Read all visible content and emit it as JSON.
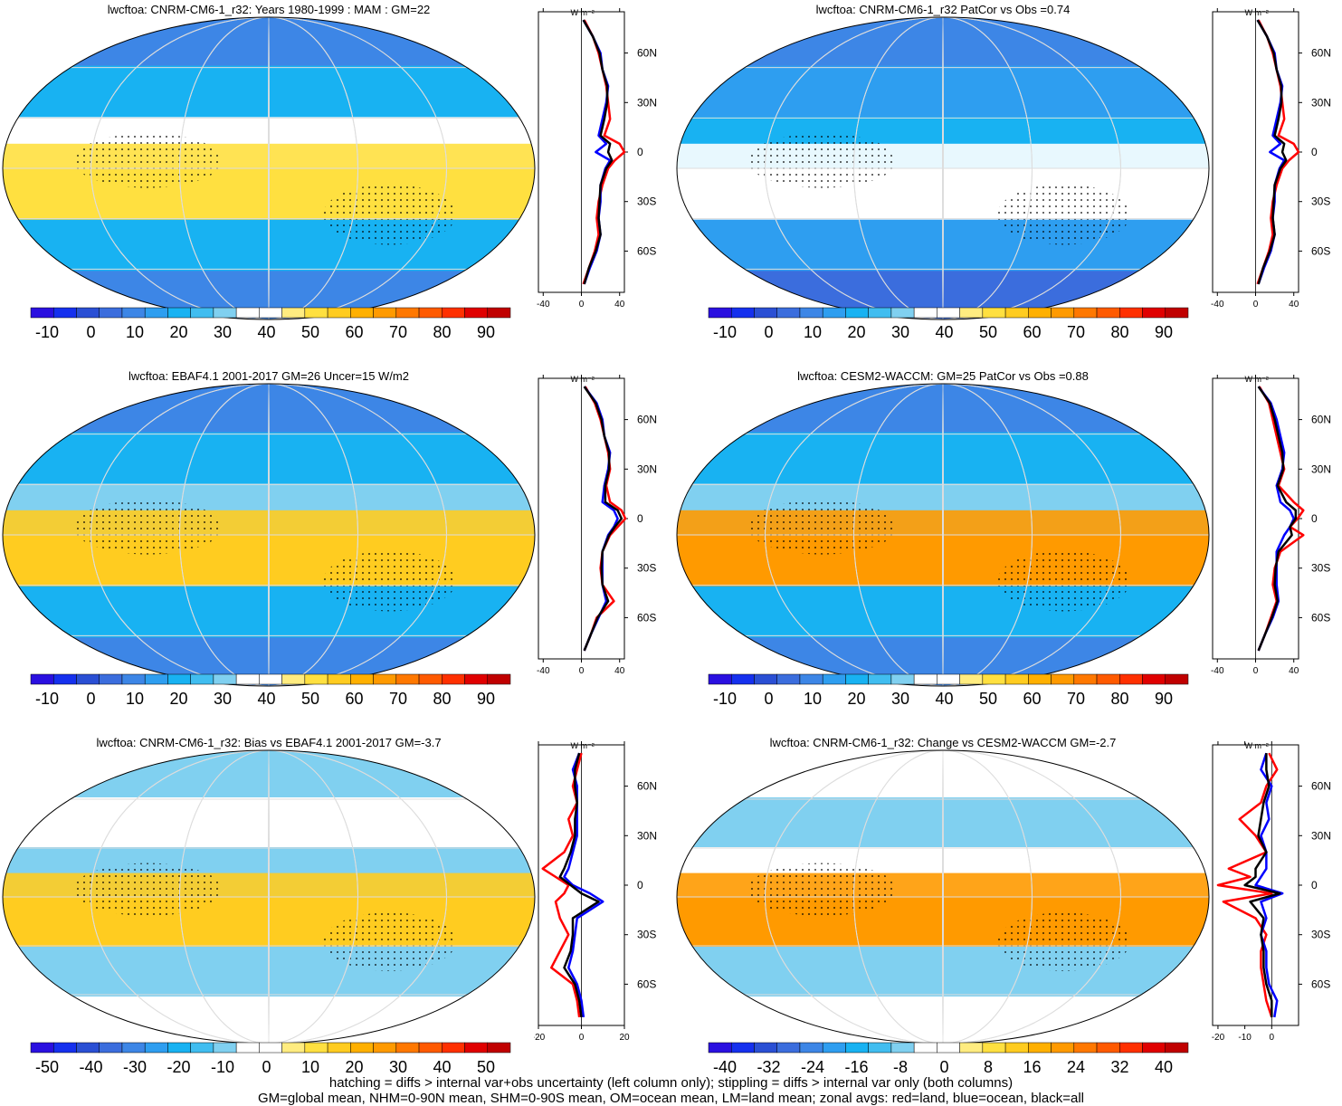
{
  "footer": {
    "line1": "hatching = diffs > internal var+obs uncertainty (left column only); stippling = diffs > internal var only (both columns)",
    "line2": "GM=global mean, NHM=0-90N mean, SHM=0-90S mean, OM=ocean mean, LM=land mean; zonal avgs: red=land, blue=ocean, black=all"
  },
  "colors": {
    "land": "#ff0000",
    "ocean": "#0000ff",
    "all": "#000000"
  },
  "palettes": {
    "abs": [
      "#2a10e0",
      "#1530ee",
      "#2a4fd4",
      "#3b6ddd",
      "#3d86e6",
      "#2e9ef0",
      "#18b2f2",
      "#40bdf0",
      "#80d0f0",
      "#ffffff",
      "#ffffff",
      "#ffec80",
      "#ffe040",
      "#ffcc20",
      "#ffb000",
      "#ff9a00",
      "#ff7800",
      "#ff5a00",
      "#ff3000",
      "#e00000",
      "#c00000"
    ],
    "bias": [
      "#2a10e0",
      "#1530ee",
      "#2a4fd4",
      "#3b6ddd",
      "#3d86e6",
      "#2e9ef0",
      "#18b2f2",
      "#40bdf0",
      "#80d0f0",
      "#ffffff",
      "#ffffff",
      "#ffec80",
      "#ffe040",
      "#ffcc20",
      "#ffb000",
      "#ff9a00",
      "#ff7800",
      "#ff5a00",
      "#ff3000",
      "#e00000",
      "#c00000"
    ],
    "change": [
      "#2a10e0",
      "#1530ee",
      "#2a4fd4",
      "#3b6ddd",
      "#3d86e6",
      "#2e9ef0",
      "#18b2f2",
      "#40bdf0",
      "#80d0f0",
      "#ffffff",
      "#ffffff",
      "#ffec80",
      "#ffe040",
      "#ffcc20",
      "#ffb000",
      "#ff9a00",
      "#ff7800",
      "#ff5a00",
      "#ff3000",
      "#e00000",
      "#c00000"
    ]
  },
  "chart_data": [
    {
      "type": "heatmap",
      "title": "lwcftoa: CNRM-CM6-1_r32: Years 1980-1999 : MAM : GM=22",
      "colorbar_labels": [
        "-10",
        "0",
        "10",
        "20",
        "30",
        "40",
        "50",
        "60",
        "70",
        "80",
        "90"
      ],
      "zonal": {
        "unit_label": "W m⁻²",
        "lat_labels": [
          "60N",
          "30N",
          "0",
          "30S",
          "60S"
        ],
        "lat_values": [
          60,
          30,
          0,
          -30,
          -60
        ],
        "x_ticks": [
          "-40",
          "0",
          "40"
        ],
        "xlim": [
          -45,
          45
        ],
        "lat": [
          80,
          70,
          60,
          50,
          40,
          30,
          20,
          10,
          5,
          0,
          -5,
          -10,
          -20,
          -30,
          -40,
          -50,
          -60,
          -70,
          -80
        ],
        "land": [
          3,
          12,
          18,
          22,
          26,
          28,
          30,
          24,
          40,
          45,
          35,
          28,
          22,
          18,
          16,
          18,
          14,
          8,
          2
        ],
        "ocean": [
          2,
          12,
          20,
          22,
          28,
          26,
          22,
          18,
          26,
          15,
          30,
          25,
          20,
          20,
          18,
          20,
          16,
          9,
          3
        ],
        "all": [
          2,
          12,
          19,
          22,
          27,
          27,
          24,
          20,
          30,
          28,
          32,
          26,
          20,
          19,
          18,
          20,
          15,
          8,
          3
        ]
      }
    },
    {
      "type": "heatmap",
      "title": "lwcftoa: CNRM-CM6-1_r32 PatCor vs Obs =0.74",
      "colorbar_labels": [
        "-10",
        "0",
        "10",
        "20",
        "30",
        "40",
        "50",
        "60",
        "70",
        "80",
        "90"
      ],
      "zonal": {
        "unit_label": "W m⁻²",
        "lat_labels": [
          "60N",
          "30N",
          "0",
          "30S",
          "60S"
        ],
        "lat_values": [
          60,
          30,
          0,
          -30,
          -60
        ],
        "x_ticks": [
          "-40",
          "0",
          "40"
        ],
        "xlim": [
          -45,
          45
        ],
        "lat": [
          80,
          70,
          60,
          50,
          40,
          30,
          20,
          10,
          5,
          0,
          -5,
          -10,
          -20,
          -30,
          -40,
          -50,
          -60,
          -70,
          -80
        ],
        "land": [
          3,
          12,
          18,
          22,
          26,
          28,
          30,
          24,
          40,
          45,
          35,
          28,
          22,
          18,
          16,
          18,
          14,
          8,
          2
        ],
        "ocean": [
          2,
          12,
          20,
          22,
          28,
          26,
          22,
          18,
          26,
          15,
          30,
          25,
          20,
          20,
          18,
          20,
          16,
          9,
          3
        ],
        "all": [
          2,
          12,
          19,
          22,
          27,
          27,
          24,
          20,
          30,
          28,
          32,
          26,
          20,
          19,
          18,
          20,
          15,
          8,
          3
        ]
      }
    },
    {
      "type": "heatmap",
      "title": "lwcftoa: EBAF4.1 2001-2017 GM=26 Uncer=15 W/m2",
      "colorbar_labels": [
        "-10",
        "0",
        "10",
        "20",
        "30",
        "40",
        "50",
        "60",
        "70",
        "80",
        "90"
      ],
      "zonal": {
        "unit_label": "W m⁻²",
        "lat_labels": [
          "60N",
          "30N",
          "0",
          "30S",
          "60S"
        ],
        "lat_values": [
          60,
          30,
          0,
          -30,
          -60
        ],
        "x_ticks": [
          "-40",
          "0",
          "40"
        ],
        "xlim": [
          -45,
          45
        ],
        "lat": [
          80,
          70,
          60,
          50,
          40,
          30,
          20,
          10,
          5,
          0,
          -5,
          -10,
          -20,
          -30,
          -40,
          -50,
          -60,
          -70,
          -80
        ],
        "land": [
          4,
          14,
          20,
          24,
          28,
          30,
          26,
          30,
          42,
          46,
          38,
          30,
          22,
          20,
          22,
          34,
          16,
          10,
          3
        ],
        "ocean": [
          3,
          16,
          22,
          24,
          30,
          28,
          24,
          22,
          34,
          38,
          34,
          28,
          22,
          22,
          22,
          26,
          18,
          10,
          3
        ],
        "all": [
          3,
          15,
          21,
          24,
          29,
          29,
          25,
          25,
          38,
          42,
          35,
          29,
          22,
          21,
          22,
          28,
          17,
          10,
          3
        ]
      }
    },
    {
      "type": "heatmap",
      "title": "lwcftoa: CESM2-WACCM: GM=25 PatCor vs Obs =0.88",
      "colorbar_labels": [
        "-10",
        "0",
        "10",
        "20",
        "30",
        "40",
        "50",
        "60",
        "70",
        "80",
        "90"
      ],
      "zonal": {
        "unit_label": "W m⁻²",
        "lat_labels": [
          "60N",
          "30N",
          "0",
          "30S",
          "60S"
        ],
        "lat_values": [
          60,
          30,
          0,
          -30,
          -60
        ],
        "x_ticks": [
          "-40",
          "0",
          "40"
        ],
        "xlim": [
          -45,
          45
        ],
        "lat": [
          80,
          70,
          60,
          50,
          40,
          30,
          20,
          10,
          5,
          0,
          -5,
          -10,
          -20,
          -30,
          -40,
          -50,
          -60,
          -70,
          -80
        ],
        "land": [
          4,
          14,
          18,
          22,
          26,
          30,
          24,
          40,
          50,
          44,
          36,
          50,
          26,
          20,
          18,
          22,
          16,
          10,
          3
        ],
        "ocean": [
          3,
          16,
          22,
          26,
          30,
          28,
          22,
          26,
          36,
          40,
          36,
          30,
          22,
          22,
          22,
          24,
          18,
          10,
          3
        ],
        "all": [
          3,
          15,
          20,
          24,
          28,
          29,
          23,
          32,
          42,
          42,
          36,
          38,
          24,
          21,
          20,
          23,
          17,
          10,
          3
        ]
      }
    },
    {
      "type": "heatmap",
      "title": "lwcftoa: CNRM-CM6-1_r32: Bias vs EBAF4.1 2001-2017 GM=-3.7",
      "colorbar_labels": [
        "-50",
        "-40",
        "-30",
        "-20",
        "-10",
        "0",
        "10",
        "20",
        "30",
        "40",
        "50"
      ],
      "zonal": {
        "unit_label": "W m⁻²",
        "lat_labels": [
          "60N",
          "30N",
          "0",
          "30S",
          "60S"
        ],
        "lat_values": [
          60,
          30,
          0,
          -30,
          -60
        ],
        "x_ticks": [
          "-20",
          "0",
          "20"
        ],
        "xlim": [
          -20,
          20
        ],
        "lat": [
          80,
          70,
          60,
          50,
          40,
          30,
          20,
          10,
          5,
          0,
          -5,
          -10,
          -20,
          -30,
          -40,
          -50,
          -60,
          -70,
          -80
        ],
        "land": [
          0,
          -2,
          -4,
          -2,
          -6,
          -4,
          -8,
          -18,
          -12,
          -6,
          -8,
          -12,
          -10,
          -6,
          -10,
          -14,
          -4,
          -2,
          -1
        ],
        "ocean": [
          -1,
          -4,
          -2,
          -2,
          -2,
          -2,
          -4,
          -6,
          -8,
          -4,
          4,
          10,
          -2,
          -3,
          -4,
          -6,
          -2,
          0,
          1
        ],
        "all": [
          -1,
          -3,
          -3,
          -2,
          -3,
          -3,
          -5,
          -8,
          -10,
          -5,
          0,
          8,
          -4,
          -4,
          -5,
          -8,
          -3,
          -1,
          0
        ]
      }
    },
    {
      "type": "heatmap",
      "title": "lwcftoa: CNRM-CM6-1_r32: Change vs CESM2-WACCM GM=-2.7",
      "colorbar_labels": [
        "-40",
        "-32",
        "-24",
        "-16",
        "-8",
        "0",
        "8",
        "16",
        "24",
        "32",
        "40"
      ],
      "zonal": {
        "unit_label": "W m⁻²",
        "lat_labels": [
          "60N",
          "30N",
          "0",
          "30S",
          "60S"
        ],
        "lat_values": [
          60,
          30,
          0,
          -30,
          -60
        ],
        "x_ticks": [
          "-20",
          "-10",
          "0"
        ],
        "xlim": [
          -22,
          10
        ],
        "lat": [
          80,
          70,
          60,
          50,
          40,
          30,
          20,
          10,
          5,
          0,
          -5,
          -10,
          -20,
          -30,
          -40,
          -50,
          -60,
          -70,
          -80
        ],
        "land": [
          -1,
          2,
          -2,
          -4,
          -12,
          -6,
          -2,
          -16,
          -8,
          -20,
          0,
          -18,
          -6,
          -2,
          -4,
          -4,
          -3,
          -2,
          0
        ],
        "ocean": [
          -2,
          -4,
          0,
          -2,
          -1,
          -4,
          -2,
          -2,
          -4,
          -6,
          4,
          -4,
          -2,
          -4,
          -2,
          -2,
          -1,
          2,
          1
        ],
        "all": [
          -2,
          -2,
          -1,
          -3,
          -4,
          -5,
          -2,
          -6,
          -6,
          -10,
          3,
          -8,
          -3,
          -4,
          -3,
          -3,
          -2,
          0,
          0
        ]
      }
    }
  ]
}
